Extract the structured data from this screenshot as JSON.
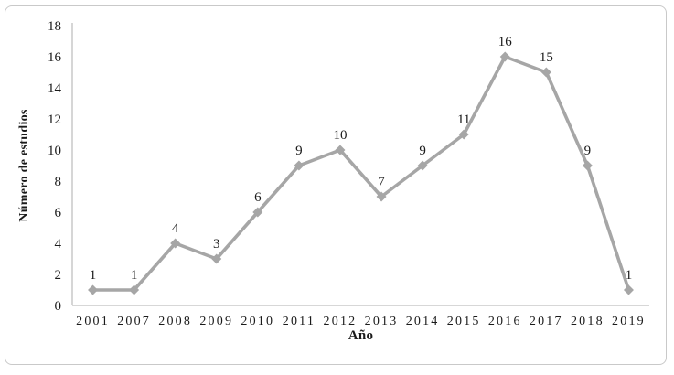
{
  "figure": {
    "xlabel": "Año",
    "ylabel": "Número de estudios"
  },
  "chart_data": {
    "type": "line",
    "categories": [
      "2001",
      "2007",
      "2008",
      "2009",
      "2010",
      "2011",
      "2012",
      "2013",
      "2014",
      "2015",
      "2016",
      "2017",
      "2018",
      "2019"
    ],
    "values": [
      1,
      1,
      4,
      3,
      6,
      9,
      10,
      7,
      9,
      11,
      16,
      15,
      9,
      1
    ],
    "title": "",
    "xlabel": "Año",
    "ylabel": "Número de estudios",
    "ylim": [
      0,
      18
    ],
    "ytick_step": 2,
    "grid": false,
    "legend": false,
    "data_labels": true,
    "marker": "diamond",
    "colors": {
      "series_line": "#a6a6a6",
      "marker_fill": "#a6a6a6",
      "axis_line": "#bfbfbf",
      "tick_text": "#1a1a1a",
      "data_label_text": "#1a1a1a",
      "frame_border": "#c9c9c9"
    }
  }
}
